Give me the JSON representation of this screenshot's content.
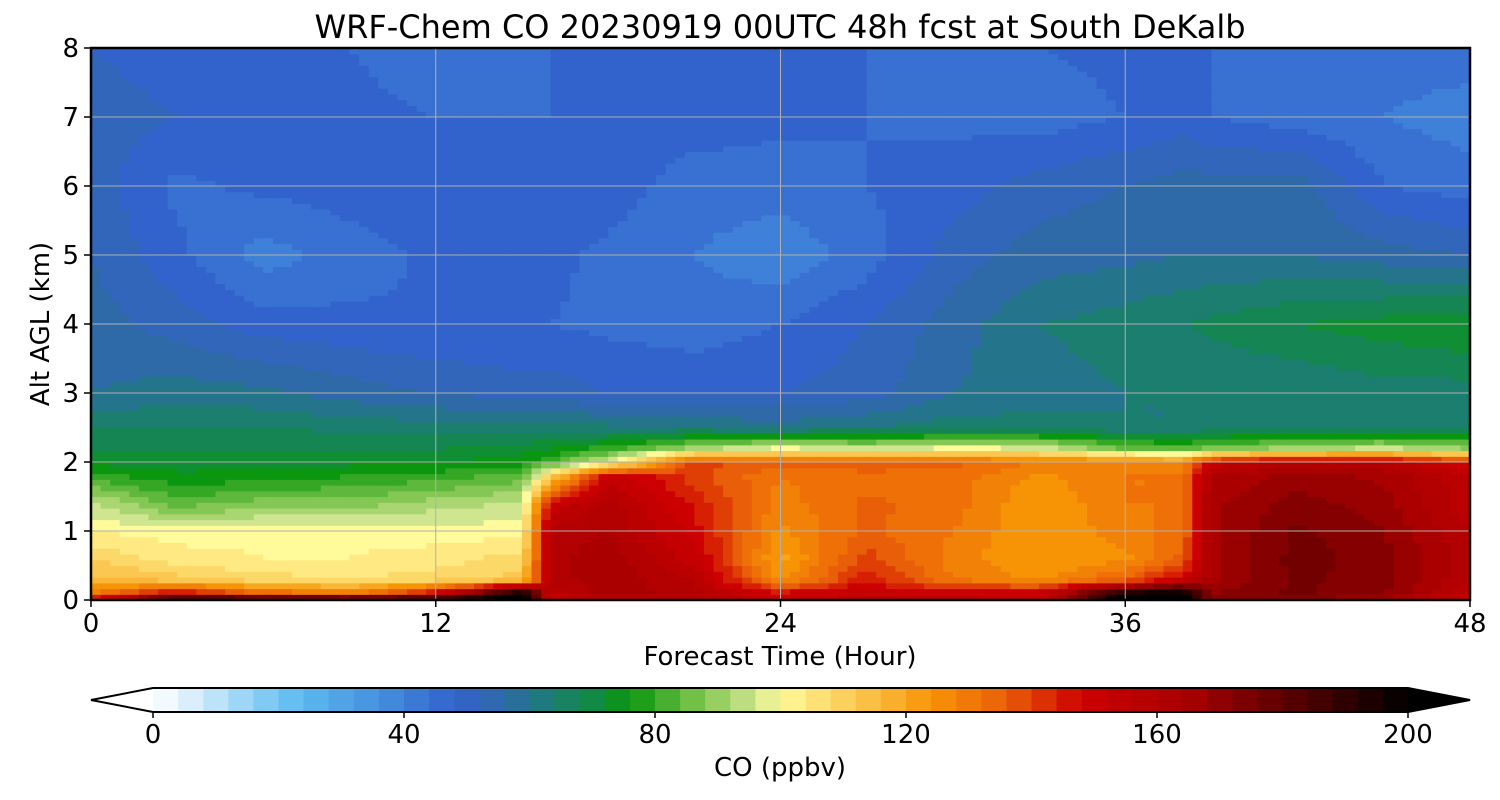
{
  "chart_data": {
    "type": "heatmap",
    "subtype": "time-height filled contour",
    "title": "WRF-Chem CO  20230919 00UTC 48h fcst at South DeKalb",
    "xlabel": "Forecast Time (Hour)",
    "ylabel": "Alt AGL (km)",
    "xlim": [
      0,
      48
    ],
    "ylim": [
      0,
      8
    ],
    "xticks": [
      0,
      12,
      24,
      36,
      48
    ],
    "yticks": [
      0,
      1,
      2,
      3,
      4,
      5,
      6,
      7,
      8
    ],
    "grid": true,
    "x_hours": [
      0,
      3,
      6,
      9,
      12,
      15,
      16,
      18,
      21,
      24,
      27,
      30,
      33,
      36,
      38,
      39,
      42,
      45,
      48
    ],
    "y_km": [
      0,
      0.1,
      0.3,
      0.6,
      1.0,
      1.4,
      1.8,
      2.0,
      2.2,
      2.5,
      3.0,
      4.0,
      5.0,
      6.0,
      7.0,
      8.0
    ],
    "z_ppbv": [
      [
        150,
        205,
        205,
        205,
        205,
        205,
        150,
        160,
        160,
        150,
        160,
        160,
        150,
        205,
        205,
        170,
        170,
        165,
        150
      ],
      [
        130,
        150,
        135,
        130,
        150,
        205,
        155,
        165,
        160,
        148,
        152,
        150,
        152,
        200,
        205,
        170,
        175,
        170,
        155
      ],
      [
        115,
        112,
        108,
        106,
        108,
        112,
        160,
        165,
        158,
        125,
        145,
        130,
        125,
        135,
        150,
        165,
        175,
        172,
        158
      ],
      [
        110,
        104,
        102,
        102,
        104,
        108,
        160,
        165,
        152,
        120,
        140,
        128,
        122,
        125,
        135,
        165,
        176,
        172,
        160
      ],
      [
        102,
        100,
        101,
        101,
        100,
        100,
        160,
        162,
        148,
        125,
        135,
        130,
        122,
        128,
        132,
        165,
        175,
        170,
        158
      ],
      [
        95,
        84,
        88,
        88,
        92,
        95,
        150,
        160,
        145,
        128,
        135,
        132,
        122,
        130,
        130,
        165,
        172,
        168,
        155
      ],
      [
        80,
        75,
        76,
        78,
        80,
        84,
        110,
        152,
        140,
        130,
        132,
        132,
        125,
        130,
        130,
        162,
        168,
        165,
        155
      ],
      [
        73,
        72,
        72,
        73,
        74,
        76,
        82,
        98,
        140,
        135,
        138,
        135,
        130,
        130,
        125,
        150,
        160,
        158,
        145
      ],
      [
        70,
        69,
        69,
        70,
        70,
        72,
        74,
        80,
        92,
        100,
        96,
        100,
        98,
        86,
        84,
        88,
        92,
        96,
        90
      ],
      [
        66,
        66,
        66,
        65,
        64,
        63,
        64,
        63,
        62,
        60,
        62,
        64,
        64,
        62,
        62,
        63,
        64,
        64,
        64
      ],
      [
        58,
        60,
        59,
        56,
        54,
        52,
        52,
        50,
        49,
        50,
        52,
        58,
        60,
        62,
        62,
        62,
        62,
        64,
        64
      ],
      [
        56,
        52,
        48,
        47,
        46,
        46,
        46,
        45,
        44,
        46,
        50,
        56,
        62,
        64,
        66,
        67,
        70,
        72,
        74
      ],
      [
        54,
        47,
        40,
        44,
        47,
        47,
        47,
        45,
        42,
        39,
        44,
        52,
        56,
        57,
        58,
        58,
        58,
        56,
        54
      ],
      [
        52,
        45,
        47,
        48,
        50,
        50,
        50,
        48,
        44,
        44,
        46,
        48,
        52,
        54,
        56,
        56,
        56,
        46,
        44
      ],
      [
        52,
        50,
        49,
        48,
        46,
        46,
        46,
        48,
        48,
        47,
        46,
        45,
        44,
        46,
        48,
        46,
        44,
        42,
        40
      ],
      [
        50,
        48,
        47,
        46,
        42,
        45,
        46,
        47,
        48,
        47,
        46,
        46,
        46,
        47,
        47,
        46,
        44,
        44,
        44
      ]
    ],
    "colorbar": {
      "label": "CO  (ppbv)",
      "ticks": [
        0,
        40,
        80,
        120,
        160,
        200
      ],
      "range": [
        0,
        200
      ],
      "extend": "both"
    }
  },
  "colormap": [
    {
      "v": 0,
      "c": "#ffffff"
    },
    {
      "v": 8,
      "c": "#cde9fa"
    },
    {
      "v": 16,
      "c": "#8dd0f5"
    },
    {
      "v": 24,
      "c": "#5ab8ee"
    },
    {
      "v": 36,
      "c": "#4590de"
    },
    {
      "v": 48,
      "c": "#3262cc"
    },
    {
      "v": 56,
      "c": "#2f6aa8"
    },
    {
      "v": 62,
      "c": "#1e7a7c"
    },
    {
      "v": 70,
      "c": "#128a45"
    },
    {
      "v": 76,
      "c": "#0a960e"
    },
    {
      "v": 86,
      "c": "#73c046"
    },
    {
      "v": 96,
      "c": "#cfe58f"
    },
    {
      "v": 100,
      "c": "#fffa9a"
    },
    {
      "v": 112,
      "c": "#fbc751"
    },
    {
      "v": 124,
      "c": "#f79406"
    },
    {
      "v": 136,
      "c": "#e95e08"
    },
    {
      "v": 148,
      "c": "#cc0000"
    },
    {
      "v": 165,
      "c": "#a80000"
    },
    {
      "v": 180,
      "c": "#5e0000"
    },
    {
      "v": 200,
      "c": "#000000"
    }
  ]
}
